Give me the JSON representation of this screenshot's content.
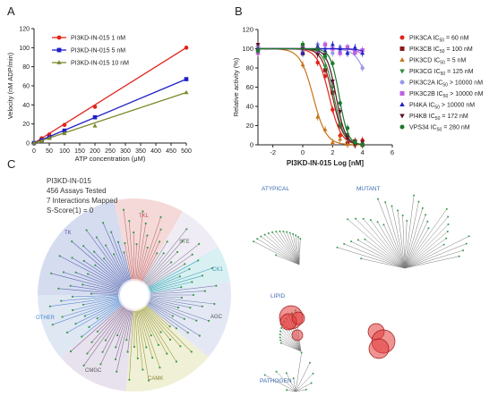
{
  "panel_letters": {
    "a": "A",
    "b": "B",
    "c": "C"
  },
  "chart_data": [
    {
      "type": "line",
      "panel": "A",
      "xlabel": "ATP concentration (μM)",
      "ylabel": "Velocity (nM ADP/min)",
      "xlim": [
        0,
        500
      ],
      "ylim": [
        0,
        120
      ],
      "xticks": [
        0,
        50,
        100,
        150,
        200,
        250,
        300,
        350,
        400,
        450,
        500
      ],
      "yticks": [
        0,
        20,
        40,
        60,
        80,
        100,
        120
      ],
      "legend_position": "top-left",
      "series": [
        {
          "name": "PI3KD-IN-015 1 nM",
          "color": "#e2231a",
          "marker": "circle",
          "x": [
            0,
            25,
            50,
            100,
            200,
            500
          ],
          "y": [
            0,
            5,
            9,
            19,
            38,
            100
          ]
        },
        {
          "name": "PI3KD-IN-015 5 nM",
          "color": "#1f1fc8",
          "marker": "square",
          "x": [
            0,
            25,
            50,
            100,
            200,
            500
          ],
          "y": [
            0,
            3,
            6,
            13,
            27,
            67
          ]
        },
        {
          "name": "PI3KD-IN-015 10 nM",
          "color": "#7b8a2a",
          "marker": "triangle",
          "x": [
            0,
            25,
            50,
            100,
            200,
            500
          ],
          "y": [
            0,
            2,
            5,
            10,
            18,
            53
          ]
        }
      ]
    },
    {
      "type": "scatter",
      "panel": "B",
      "xlabel": "PI3KD-IN-015 Log [nM]",
      "ylabel": "Relative activity (%)",
      "xlim": [
        -3,
        6
      ],
      "ylim": [
        0,
        120
      ],
      "xticks": [
        -2,
        0,
        2,
        4,
        6
      ],
      "yticks": [
        0,
        20,
        40,
        60,
        80,
        100,
        120
      ],
      "legend_position": "right",
      "series": [
        {
          "name": "PIK3CA IC50 = 60 nM",
          "legend_main": "PIK3CA IC",
          "legend_sub": "50",
          "legend_rest": " = 60 nM",
          "color": "#e2231a",
          "marker": "circle",
          "log_ic50": 1.78,
          "hill": 1.1,
          "bottom": 0
        },
        {
          "name": "PIK3CB IC50 = 100 nM",
          "legend_main": "PIK3CB IC",
          "legend_sub": "50",
          "legend_rest": " = 100 nM",
          "color": "#8b1a1a",
          "marker": "square",
          "log_ic50": 2.0,
          "hill": 1.2,
          "bottom": 0
        },
        {
          "name": "PIK3CD IC50 = 5 nM",
          "legend_main": "PIK3CD IC",
          "legend_sub": "50",
          "legend_rest": " = 5 nM",
          "color": "#c8741a",
          "marker": "triangle",
          "log_ic50": 0.7,
          "hill": 1.0,
          "bottom": 0
        },
        {
          "name": "PIK3CG IC50 = 125 nM",
          "legend_main": "PIK3CG IC",
          "legend_sub": "50",
          "legend_rest": " = 125 nM",
          "color": "#2e8b3a",
          "marker": "triangle-down",
          "log_ic50": 2.1,
          "hill": 1.3,
          "bottom": 0
        },
        {
          "name": "PIK3C2A IC50 > 10000 nM",
          "legend_main": "PIK3C2A IC",
          "legend_sub": "50",
          "legend_rest": " > 10000 nM",
          "color": "#9a9ae8",
          "marker": "circle",
          "log_ic50": 4.6,
          "hill": 1.0,
          "bottom": 0
        },
        {
          "name": "PIK3C2B IC50 > 10000 nM",
          "legend_main": "PIK3C2B IC",
          "legend_sub": "50",
          "legend_rest": " > 10000 nM",
          "color": "#c060e0",
          "marker": "square",
          "log_ic50": 5.2,
          "hill": 1.0,
          "bottom": 0
        },
        {
          "name": "PI4KA IC50 > 10000 nM",
          "legend_main": "PI4KA IC",
          "legend_sub": "50",
          "legend_rest": " > 10000 nM",
          "color": "#2020c8",
          "marker": "triangle",
          "log_ic50": 5.6,
          "hill": 1.0,
          "bottom": 0
        },
        {
          "name": "PI4KB IC50 = 172 nM",
          "legend_main": "PI4KB IC",
          "legend_sub": "50",
          "legend_rest": " = 172 nM",
          "color": "#5a1030",
          "marker": "triangle-down",
          "log_ic50": 2.24,
          "hill": 1.4,
          "bottom": 0
        },
        {
          "name": "VPS34 IC50 = 280 nM",
          "legend_main": "VPS34 IC",
          "legend_sub": "50",
          "legend_rest": " = 280 nM",
          "color": "#1a7a2a",
          "marker": "circle",
          "log_ic50": 2.45,
          "hill": 1.5,
          "bottom": 0
        }
      ],
      "x_points": [
        -3,
        0,
        1,
        1.5,
        2,
        2.5,
        3,
        3.5,
        4
      ]
    }
  ],
  "panel_c": {
    "info_lines": [
      "PI3KD-IN-015",
      "456 Assays Tested",
      "7 Interactions Mapped",
      "S-Score(1) = 0"
    ],
    "group_labels": {
      "tk": "TK",
      "tkl": "TKL",
      "ste": "STE",
      "ck1": "CK1",
      "agc": "AGC",
      "camk": "CAMK",
      "cmgc": "CMGC",
      "other": "OTHER"
    },
    "group_colors": {
      "tk": "#d6dcf0",
      "tkl": "#f5d9d9",
      "ste": "#f0ecf5",
      "ck1": "#d9f0f3",
      "agc": "#e4e8f5",
      "camk": "#f0f0d6",
      "cmgc": "#e8e2ee",
      "other": "#dfe7f3"
    },
    "side_labels": {
      "atypical": "ATYPICAL",
      "mutant": "MUTANT",
      "lipid": "LIPID",
      "pathogen": "PATHOGEN"
    },
    "hit_color": "#e23a3a"
  }
}
